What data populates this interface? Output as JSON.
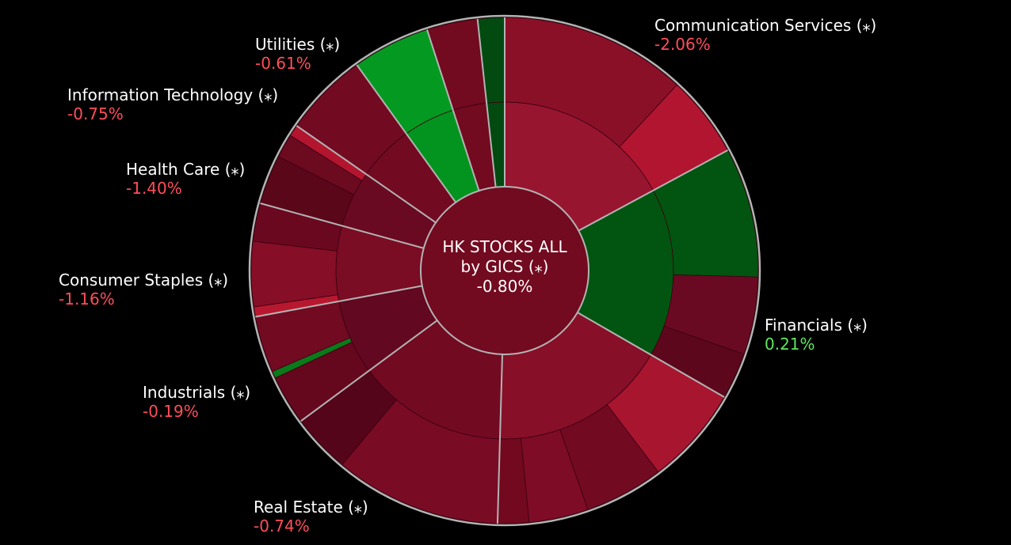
{
  "colors": {
    "background": "#000000",
    "label_text": "#ffffff",
    "negative_text": "#ff4d5a",
    "positive_text": "#5ee65e",
    "outline": "#b3b3b3",
    "hub_fill": "#720a20"
  },
  "center": {
    "line1": "HK STOCKS ALL",
    "line2": "by GICS (⁎)",
    "change": "-0.80%"
  },
  "chart_data": {
    "type": "sunburst",
    "root": {
      "label": "HK STOCKS ALL by GICS (⁎)",
      "change": "-0.80%"
    },
    "start_angle_deg": 0,
    "direction": "clockwise",
    "sectors": [
      {
        "name": "Communication Services (⁎)",
        "change": "-2.06%",
        "change_value": -2.06,
        "weight": 19.0,
        "color": "#981530",
        "children": [
          {
            "weight": 13.2,
            "color": "#8a1028"
          },
          {
            "weight": 5.8,
            "color": "#b11530"
          }
        ]
      },
      {
        "name": "Financials (⁎)",
        "change": "0.21%",
        "change_value": 0.21,
        "weight": 18.0,
        "color": "#025510",
        "children": [
          {
            "weight": 9.2,
            "color": "#025510"
          },
          {
            "weight": 5.5,
            "color": "#6a0a22"
          },
          {
            "weight": 3.3,
            "color": "#5c071c"
          }
        ]
      },
      {
        "name": "Real Estate (⁎)",
        "change": "-0.74%",
        "change_value": -0.74,
        "weight": 19.0,
        "color": "#870f28",
        "children": [
          {
            "weight": 7.0,
            "color": "#a8152f"
          },
          {
            "weight": 5.6,
            "color": "#720a22"
          },
          {
            "weight": 4.2,
            "color": "#7e0c26"
          },
          {
            "weight": 2.2,
            "color": "#72091f"
          }
        ]
      },
      {
        "name": "Industrials (⁎)",
        "change": "-0.19%",
        "change_value": -0.19,
        "weight": 16.0,
        "color": "#720a22",
        "children": [
          {
            "weight": 11.8,
            "color": "#7a0b24"
          },
          {
            "weight": 4.2,
            "color": "#55051a"
          }
        ]
      },
      {
        "name": "Consumer Staples (⁎)",
        "change": "-1.16%",
        "change_value": -1.16,
        "weight": 8.0,
        "color": "#620820",
        "children": [
          {
            "weight": 3.5,
            "color": "#65071d"
          },
          {
            "weight": 0.5,
            "color": "#0b7a1a"
          },
          {
            "weight": 4.0,
            "color": "#720a22"
          }
        ]
      },
      {
        "name": "Health Care (⁎)",
        "change": "-1.40%",
        "change_value": -1.4,
        "weight": 8.0,
        "color": "#7a0c24",
        "children": [
          {
            "weight": 0.7,
            "color": "#b8182f"
          },
          {
            "weight": 4.6,
            "color": "#860e26"
          },
          {
            "weight": 2.7,
            "color": "#6a0820"
          }
        ]
      },
      {
        "name": "Information Technology (⁎)",
        "change": "-0.75%",
        "change_value": -0.75,
        "weight": 6.0,
        "color": "#6a0a22",
        "children": [
          {
            "weight": 3.5,
            "color": "#5a0719"
          },
          {
            "weight": 1.7,
            "color": "#6c0a20"
          },
          {
            "weight": 0.8,
            "color": "#b3152f"
          }
        ]
      },
      {
        "name": "Utilities (⁎)",
        "change": "-0.61%",
        "change_value": -0.61,
        "weight": 6.0,
        "color": "#720a22",
        "children": [
          {
            "weight": 6.0,
            "color": "#720a22"
          }
        ]
      },
      {
        "name": "",
        "change": "",
        "change_value": 1.0,
        "weight": 5.5,
        "color": "#03941f",
        "children": [
          {
            "weight": 5.5,
            "color": "#049a22"
          }
        ]
      },
      {
        "name": "",
        "change": "",
        "change_value": -0.8,
        "weight": 3.6,
        "color": "#720a20",
        "children": [
          {
            "weight": 3.6,
            "color": "#720a20"
          }
        ]
      },
      {
        "name": "",
        "change": "",
        "change_value": 0.3,
        "weight": 1.9,
        "color": "#024a10",
        "children": [
          {
            "weight": 1.9,
            "color": "#024a10"
          }
        ]
      }
    ]
  }
}
